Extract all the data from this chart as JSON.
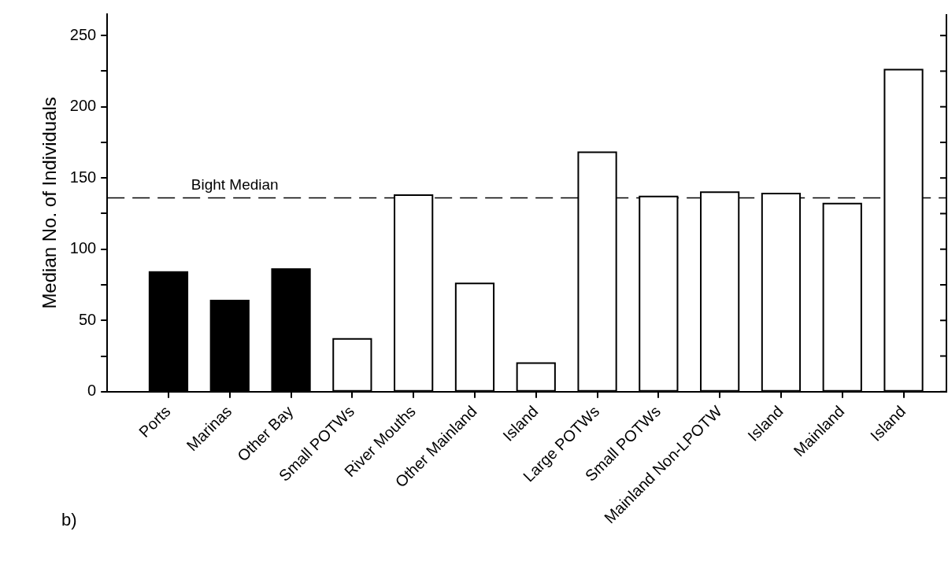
{
  "chart_data": {
    "type": "bar",
    "ylabel": "Median No. of Individuals",
    "categories": [
      "Ports",
      "Marinas",
      "Other Bay",
      "Small POTWs",
      "River Mouths",
      "Other Mainland",
      "Island",
      "Large POTWs",
      "Small POTWs",
      "Mainland Non-LPOTW",
      "Island",
      "Mainland",
      "Island"
    ],
    "values": [
      84,
      64,
      86,
      37,
      138,
      76,
      20,
      168,
      137,
      140,
      139,
      132,
      226
    ],
    "colors": [
      "#000000",
      "#000000",
      "#000000",
      "#ffffff",
      "#ffffff",
      "#ffffff",
      "#ffffff",
      "#ffffff",
      "#ffffff",
      "#ffffff",
      "#ffffff",
      "#ffffff",
      "#ffffff"
    ],
    "ylim": [
      0,
      265
    ],
    "yticks": [
      0,
      {
        "value": 25,
        "label": null
      },
      50,
      {
        "value": 75,
        "label": null
      },
      100,
      {
        "value": 125,
        "label": null
      },
      150,
      {
        "value": 175,
        "label": null
      },
      200,
      {
        "value": 225,
        "label": null
      },
      250
    ],
    "ref_lines": [
      {
        "axis": "y",
        "value": 136,
        "label": "Bight Median",
        "line_style": "dashed",
        "color": "#000000"
      }
    ],
    "annotations": [
      "b)"
    ],
    "grid": false,
    "legend": false
  }
}
